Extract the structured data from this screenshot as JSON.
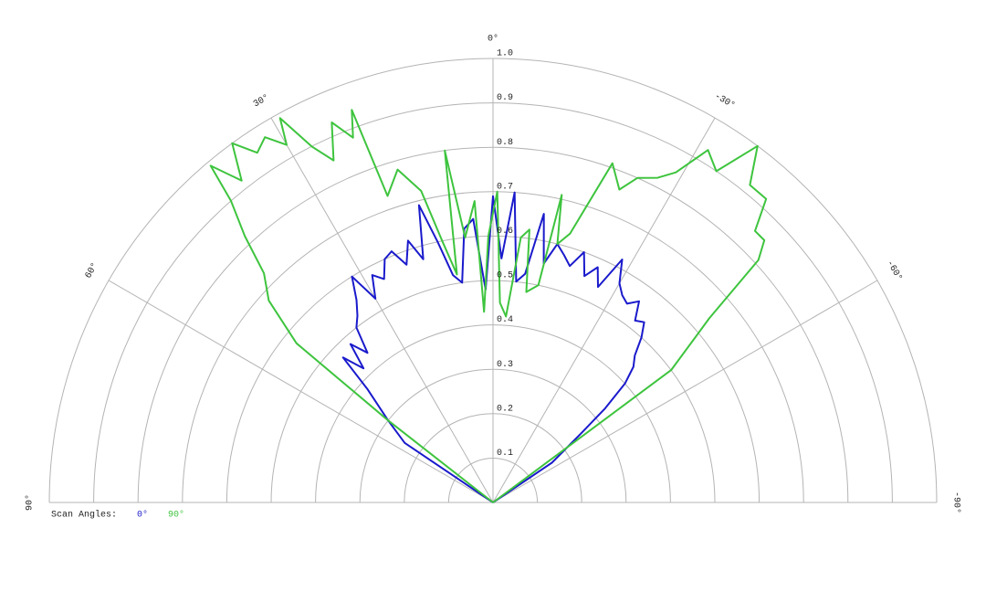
{
  "chart_data": {
    "type": "polar",
    "legend_title": "Scan Angles:",
    "rlim": [
      0,
      1
    ],
    "rticks": [
      0.1,
      0.2,
      0.3,
      0.4,
      0.5,
      0.6,
      0.7,
      0.8,
      0.9,
      {
        "value": 1,
        "label": "1.0"
      }
    ],
    "thetalim": [
      -90,
      90
    ],
    "thetaticks": [
      {
        "value": 90,
        "label": "90°"
      },
      {
        "value": 60,
        "label": "60°"
      },
      {
        "value": 30,
        "label": "30°"
      },
      {
        "value": 0,
        "label": "0°"
      },
      {
        "value": -30,
        "label": "-30°"
      },
      {
        "value": -60,
        "label": "-60°"
      },
      {
        "value": -90,
        "label": "-90°"
      }
    ],
    "grid": true,
    "legend": "bottom-left",
    "series": [
      {
        "name": "0°",
        "color": "#1a1acc",
        "theta": [
          60,
          56,
          52,
          48,
          46,
          44,
          42,
          40,
          38,
          36,
          34,
          32,
          30,
          28,
          26,
          24,
          22,
          20,
          18,
          16,
          14,
          12,
          10,
          8,
          6,
          4,
          2,
          0,
          -2,
          -4,
          -6,
          -8,
          -10,
          -12,
          -14,
          -16,
          -18,
          -20,
          -22,
          -24,
          -26,
          -28,
          -30,
          -32,
          -34,
          -36,
          -38,
          -40,
          -42,
          -44,
          -46,
          -48,
          -50,
          -52,
          -56,
          -60
        ],
        "values": [
          0,
          0.24,
          0.3,
          0.38,
          0.47,
          0.42,
          0.48,
          0.44,
          0.5,
          0.52,
          0.55,
          0.6,
          0.53,
          0.58,
          0.56,
          0.6,
          0.61,
          0.57,
          0.62,
          0.57,
          0.69,
          0.6,
          0.52,
          0.5,
          0.62,
          0.64,
          0.48,
          0.69,
          0.55,
          0.7,
          0.5,
          0.52,
          0.66,
          0.55,
          0.6,
          0.58,
          0.56,
          0.6,
          0.55,
          0.58,
          0.54,
          0.62,
          0.57,
          0.55,
          0.54,
          0.56,
          0.52,
          0.53,
          0.5,
          0.46,
          0.44,
          0.4,
          0.33,
          0.25,
          0.16,
          0
        ]
      },
      {
        "name": "90°",
        "color": "#3ec43e",
        "theta": [
          54,
          52,
          51,
          48,
          45,
          43,
          41,
          40,
          38,
          36,
          34,
          32,
          30,
          29,
          27,
          25,
          23,
          21,
          19.8,
          19,
          16,
          13,
          11,
          9,
          7.8,
          6,
          3.5,
          2.7,
          1,
          -0.8,
          -2,
          -4,
          -6,
          -7.6,
          -9,
          -11.8,
          -12.6,
          -14,
          -16,
          -19.4,
          -22,
          -24,
          -26.9,
          -29,
          -31.4,
          -34,
          -36.6,
          -39,
          -42,
          -44,
          -46,
          -47.6,
          -49.6,
          -51,
          -53.4,
          -54
        ],
        "values": [
          0,
          0.3,
          0.57,
          0.68,
          0.73,
          0.82,
          0.9,
          0.99,
          0.92,
          1,
          0.95,
          0.97,
          0.93,
          0.99,
          0.9,
          0.85,
          0.93,
          0.88,
          0.94,
          0.73,
          0.78,
          0.72,
          0.6,
          0.52,
          0.8,
          0.6,
          0.68,
          0.43,
          0.6,
          0.7,
          0.45,
          0.42,
          0.6,
          0.62,
          0.48,
          0.5,
          0.71,
          0.6,
          0.63,
          0.81,
          0.76,
          0.8,
          0.82,
          0.85,
          0.93,
          0.9,
          1,
          0.92,
          0.92,
          0.85,
          0.85,
          0.81,
          0.64,
          0.58,
          0.5,
          0
        ]
      }
    ]
  }
}
